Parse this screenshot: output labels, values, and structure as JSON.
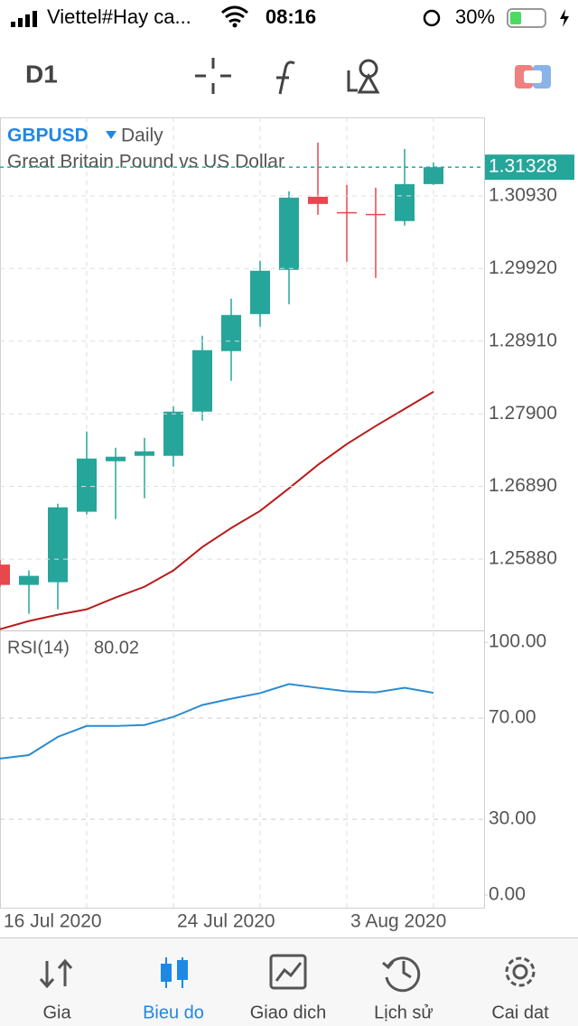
{
  "status_bar": {
    "carrier": "Viettel#Hay ca...",
    "time": "08:16",
    "battery": "30%"
  },
  "toolbar": {
    "timeframe": "D1"
  },
  "chart_data": {
    "type": "candlestick",
    "symbol": "GBPUSD",
    "period": "Daily",
    "subtitle": "Great Britain Pound vs US Dollar",
    "categories": [
      "16 Jul 2020",
      null,
      null,
      null,
      null,
      null,
      "24 Jul 2020",
      null,
      null,
      null,
      null,
      null,
      "3 Aug 2020",
      null,
      null,
      null
    ],
    "open": [
      1.25805,
      1.25522,
      1.2556,
      1.26539,
      1.27241,
      1.27316,
      1.27316,
      1.27931,
      1.28772,
      1.29286,
      1.29901,
      1.30917,
      1.30704,
      1.30679,
      1.30579,
      1.31093
    ],
    "high": [
      1.25868,
      1.25723,
      1.26651,
      1.27655,
      1.27429,
      1.27567,
      1.28007,
      1.28985,
      1.295,
      1.30027,
      1.30993,
      1.3167,
      1.31081,
      1.31043,
      1.31582,
      1.31394
    ],
    "low": [
      1.25497,
      1.25121,
      1.25183,
      1.26501,
      1.26438,
      1.26727,
      1.27166,
      1.27806,
      1.28358,
      1.29111,
      1.29424,
      1.30667,
      1.30014,
      1.29788,
      1.30516,
      1.31081
    ],
    "close": [
      1.25522,
      1.25648,
      1.26601,
      1.27279,
      1.27304,
      1.27379,
      1.27931,
      1.28785,
      1.29274,
      1.29889,
      1.30905,
      1.30817,
      1.30704,
      1.30679,
      1.31093,
      1.31328
    ],
    "up_color": "#26a69a",
    "down_color": "#e5484d",
    "overlay": {
      "color": "#b71c1c",
      "values": [
        1.24907,
        1.2502,
        1.25108,
        1.25183,
        1.25347,
        1.25497,
        1.25723,
        1.26049,
        1.26313,
        1.26551,
        1.26865,
        1.27191,
        1.2748,
        1.27731,
        1.27969,
        1.28207
      ]
    },
    "current_price": 1.31328,
    "ylim": [
      1.2489,
      1.3202
    ],
    "yticks": [
      {
        "value": 1.3093,
        "label": "1.30930"
      },
      {
        "value": 1.2992,
        "label": "1.29920"
      },
      {
        "value": 1.2891,
        "label": "1.28910"
      },
      {
        "value": 1.279,
        "label": "1.27900"
      },
      {
        "value": 1.2689,
        "label": "1.26890"
      },
      {
        "value": 1.2588,
        "label": "1.25880"
      }
    ],
    "grid": true,
    "indicator": {
      "label": "RSI(14)",
      "color": "#2b8bd0",
      "values": [
        54,
        55.4,
        62.6,
        66.9,
        66.9,
        67.3,
        70.5,
        75.2,
        77.7,
        79.9,
        83.5,
        82,
        80.6,
        80.2,
        82,
        80.02
      ],
      "ylim": [
        -5,
        104
      ],
      "yticks": [
        {
          "value": 100,
          "label": "100.00"
        },
        {
          "value": 70,
          "label": "70.00"
        },
        {
          "value": 30,
          "label": "30.00"
        },
        {
          "value": 0,
          "label": "0.00"
        }
      ]
    }
  },
  "nav": {
    "items": [
      "Gia",
      "Bieu do",
      "Giao dich",
      "Lịch sử",
      "Cai dat"
    ]
  }
}
